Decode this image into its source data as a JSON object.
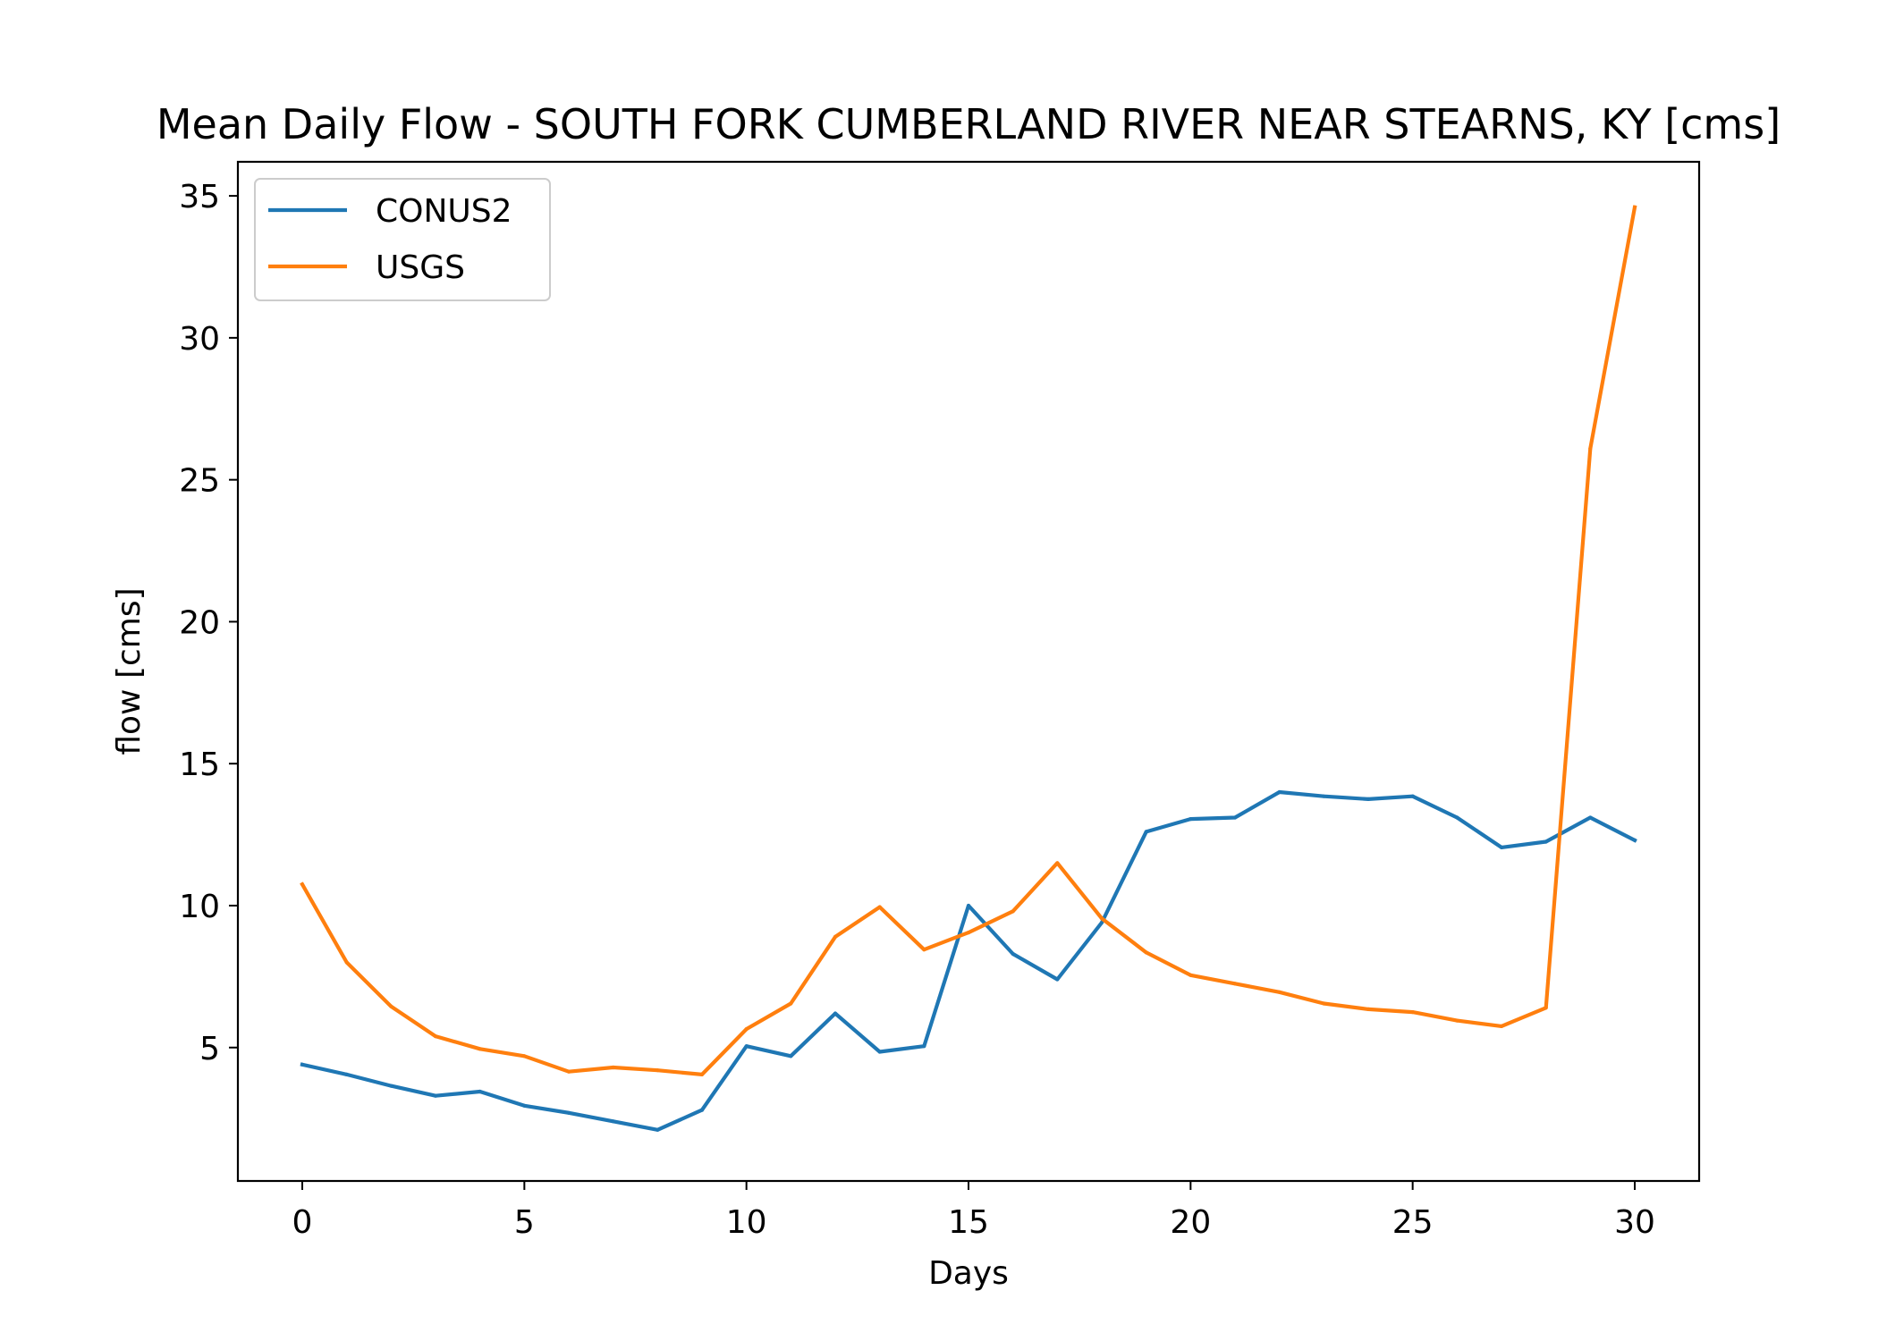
{
  "chart_data": {
    "type": "line",
    "title": "Mean Daily Flow - SOUTH FORK CUMBERLAND RIVER NEAR STEARNS, KY [cms]",
    "xlabel": "Days",
    "ylabel": "flow [cms]",
    "xlim": [
      -1.45,
      31.45
    ],
    "ylim": [
      0.3,
      36.2
    ],
    "xticks": [
      0,
      5,
      10,
      15,
      20,
      25,
      30
    ],
    "yticks": [
      5,
      10,
      15,
      20,
      25,
      30,
      35
    ],
    "grid": false,
    "legend_position": "upper-left",
    "x": [
      0,
      1,
      2,
      3,
      4,
      5,
      6,
      7,
      8,
      9,
      10,
      11,
      12,
      13,
      14,
      15,
      16,
      17,
      18,
      19,
      20,
      21,
      22,
      23,
      24,
      25,
      26,
      27,
      28,
      29,
      30
    ],
    "series": [
      {
        "name": "CONUS2",
        "color": "#1f77b4",
        "values": [
          4.4,
          4.05,
          3.65,
          3.3,
          3.45,
          2.95,
          2.7,
          2.4,
          2.1,
          2.8,
          5.05,
          4.7,
          6.2,
          4.85,
          5.05,
          10.0,
          8.3,
          7.4,
          9.4,
          12.6,
          13.05,
          13.1,
          14.0,
          13.85,
          13.75,
          13.85,
          13.1,
          12.05,
          12.25,
          13.1,
          12.3
        ]
      },
      {
        "name": "USGS",
        "color": "#ff7f0e",
        "values": [
          10.75,
          8.0,
          6.45,
          5.4,
          4.95,
          4.7,
          4.15,
          4.3,
          4.2,
          4.05,
          5.65,
          6.55,
          8.9,
          9.95,
          8.45,
          9.05,
          9.8,
          11.5,
          9.55,
          8.35,
          7.55,
          7.25,
          6.95,
          6.55,
          6.35,
          6.25,
          5.95,
          5.75,
          6.4,
          26.1,
          34.6
        ]
      }
    ]
  }
}
